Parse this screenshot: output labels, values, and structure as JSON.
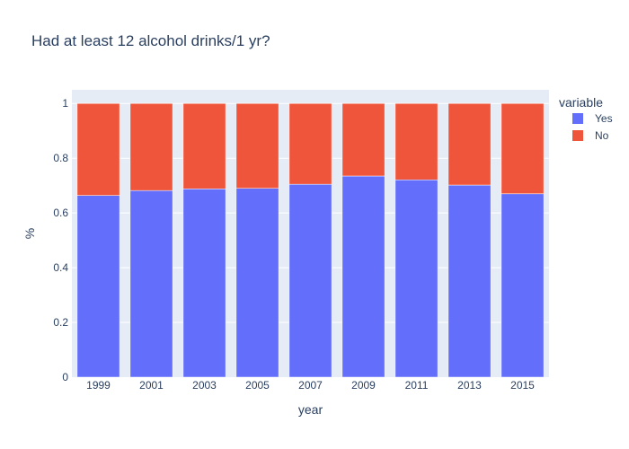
{
  "chart_data": {
    "type": "bar",
    "stacked": true,
    "title": "Had at least 12 alcohol drinks/1 yr?",
    "xlabel": "year",
    "ylabel": "%",
    "categories": [
      "1999",
      "2001",
      "2003",
      "2005",
      "2007",
      "2009",
      "2011",
      "2013",
      "2015"
    ],
    "series": [
      {
        "name": "Yes",
        "color": "#636efa",
        "values": [
          0.664,
          0.682,
          0.688,
          0.69,
          0.705,
          0.735,
          0.721,
          0.702,
          0.67
        ]
      },
      {
        "name": "No",
        "color": "#ef553b",
        "values": [
          0.336,
          0.318,
          0.312,
          0.31,
          0.295,
          0.265,
          0.279,
          0.298,
          0.33
        ]
      }
    ],
    "ylim": [
      0,
      1.05
    ],
    "yticks": [
      0,
      0.2,
      0.4,
      0.6,
      0.8,
      1
    ],
    "ytick_labels": [
      "0",
      "0.2",
      "0.4",
      "0.6",
      "0.8",
      "1"
    ],
    "legend_title": "variable",
    "legend_position": "top-right",
    "grid": true,
    "plot_bg": "#e5ecf6"
  }
}
